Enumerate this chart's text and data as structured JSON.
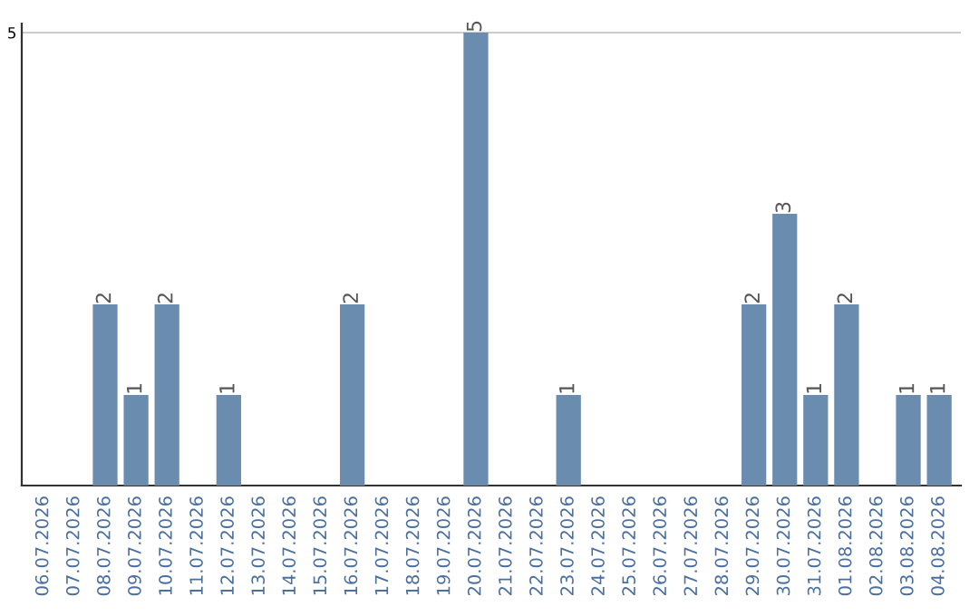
{
  "chart_data": {
    "type": "bar",
    "categories": [
      "06.07.2026",
      "07.07.2026",
      "08.07.2026",
      "09.07.2026",
      "10.07.2026",
      "11.07.2026",
      "12.07.2026",
      "13.07.2026",
      "14.07.2026",
      "15.07.2026",
      "16.07.2026",
      "17.07.2026",
      "18.07.2026",
      "19.07.2026",
      "20.07.2026",
      "21.07.2026",
      "22.07.2026",
      "23.07.2026",
      "24.07.2026",
      "25.07.2026",
      "26.07.2026",
      "27.07.2026",
      "28.07.2026",
      "29.07.2026",
      "30.07.2026",
      "31.07.2026",
      "01.08.2026",
      "02.08.2026",
      "03.08.2026",
      "04.08.2026"
    ],
    "values": [
      0,
      0,
      2,
      1,
      2,
      0,
      1,
      0,
      0,
      0,
      2,
      0,
      0,
      0,
      5,
      0,
      0,
      1,
      0,
      0,
      0,
      0,
      0,
      2,
      3,
      1,
      2,
      0,
      1,
      1
    ],
    "value_labels": [
      null,
      null,
      "2",
      "1",
      "2",
      null,
      "1",
      null,
      null,
      null,
      "2",
      null,
      null,
      null,
      "5",
      null,
      null,
      "1",
      null,
      null,
      null,
      null,
      null,
      "2",
      "3",
      "1",
      "2",
      null,
      "1",
      "1"
    ],
    "color": "#6a8caf",
    "ylim": [
      0,
      5.1
    ],
    "yticks": [
      5
    ],
    "grid": "y"
  }
}
